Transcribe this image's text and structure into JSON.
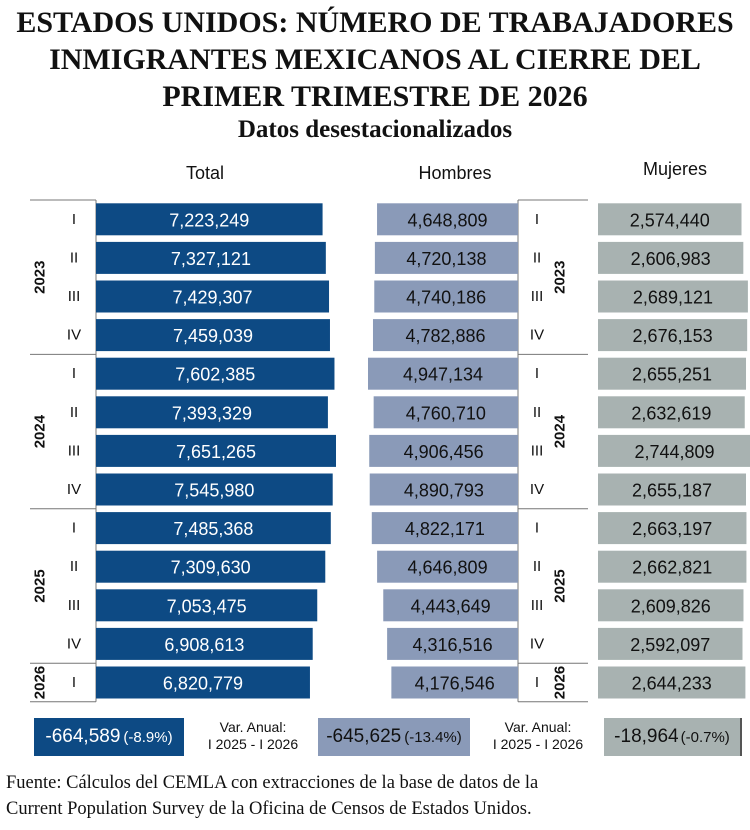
{
  "chart_data": {
    "type": "bar",
    "orientation": "horizontal",
    "title": "ESTADOS UNIDOS: NÚMERO DE TRABAJADORES INMIGRANTES MEXICANOS AL CIERRE DEL PRIMER TRIMESTRE DE 2026",
    "title_lines": [
      "ESTADOS UNIDOS: NÚMERO DE TRABAJADORES",
      "INMIGRANTES MEXICANOS AL CIERRE DEL",
      "PRIMER TRIMESTRE DE 2026"
    ],
    "subtitle": "Datos desestacionalizados",
    "years": [
      {
        "label": "2023",
        "count": 4
      },
      {
        "label": "2024",
        "count": 4
      },
      {
        "label": "2025",
        "count": 4
      },
      {
        "label": "2026",
        "count": 1
      }
    ],
    "categories": [
      "2023-I",
      "2023-II",
      "2023-III",
      "2023-IV",
      "2024-I",
      "2024-II",
      "2024-III",
      "2024-IV",
      "2025-I",
      "2025-II",
      "2025-III",
      "2025-IV",
      "2026-I"
    ],
    "quarter_labels": [
      "I",
      "II",
      "III",
      "IV",
      "I",
      "II",
      "III",
      "IV",
      "I",
      "II",
      "III",
      "IV",
      "I"
    ],
    "series": [
      {
        "name": "Total",
        "color": "#0d4a84",
        "values": [
          7223249,
          7327121,
          7429307,
          7459039,
          7602385,
          7393329,
          7651265,
          7545980,
          7485368,
          7309630,
          7053475,
          6908613,
          6820779
        ],
        "labels": [
          "7,223,249",
          "7,327,121",
          "7,429,307",
          "7,459,039",
          "7,602,385",
          "7,393,329",
          "7,651,265",
          "7,545,980",
          "7,485,368",
          "7,309,630",
          "7,053,475",
          "6,908,613",
          "6,820,779"
        ]
      },
      {
        "name": "Hombres",
        "color": "#8a9ab8",
        "values": [
          4648809,
          4720138,
          4740186,
          4782886,
          4947134,
          4760710,
          4906456,
          4890793,
          4822171,
          4646809,
          4443649,
          4316516,
          4176546
        ],
        "labels": [
          "4,648,809",
          "4,720,138",
          "4,740,186",
          "4,782,886",
          "4,947,134",
          "4,760,710",
          "4,906,456",
          "4,890,793",
          "4,822,171",
          "4,646,809",
          "4,443,649",
          "4,316,516",
          "4,176,546"
        ]
      },
      {
        "name": "Mujeres",
        "color": "#a8b2b1",
        "values": [
          2574440,
          2606983,
          2689121,
          2676153,
          2655251,
          2632619,
          2744809,
          2655187,
          2663197,
          2662821,
          2609826,
          2592097,
          2644233
        ],
        "labels": [
          "2,574,440",
          "2,606,983",
          "2,689,121",
          "2,676,153",
          "2,655,251",
          "2,632,619",
          "2,744,809",
          "2,655,187",
          "2,663,197",
          "2,662,821",
          "2,609,826",
          "2,592,097",
          "2,644,233"
        ]
      }
    ],
    "annual_change": {
      "total": {
        "value": "-664,589",
        "pct": "(-8.9%)"
      },
      "hombres": {
        "value": "-645,625",
        "pct": "(-13.4%)"
      },
      "mujeres": {
        "value": "-18,964",
        "pct": "(-0.7%)"
      },
      "label_line1": "Var. Anual:",
      "label_line2": "I 2025 - I 2026"
    },
    "source_lines": [
      "Fuente: Cálculos del CEMLA con extracciones de la base de datos de la",
      "Current Population Survey de la Oficina de Censos de Estados Unidos."
    ]
  }
}
